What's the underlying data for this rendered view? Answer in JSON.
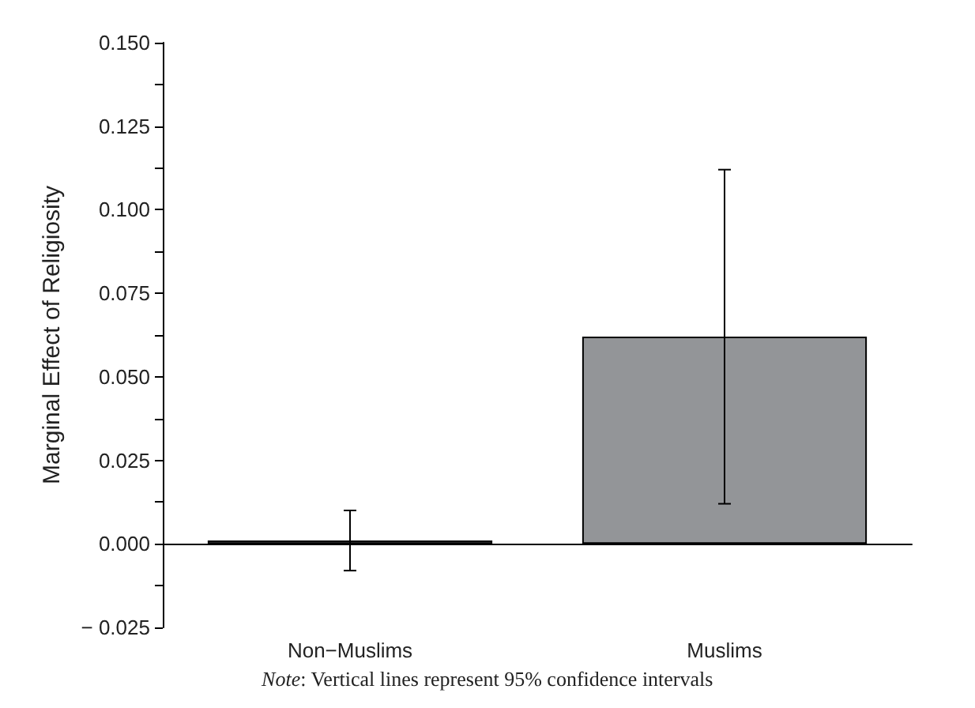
{
  "chart_data": {
    "type": "bar",
    "ylabel": "Marginal Effect of Religiosity",
    "categories": [
      "Non−Muslims",
      "Muslims"
    ],
    "values": [
      0.001,
      0.062
    ],
    "errors": [
      [
        -0.008,
        0.01
      ],
      [
        0.012,
        0.112
      ]
    ],
    "color": "#939598",
    "ylim": [
      -0.025,
      0.15
    ],
    "yticks": [
      {
        "value": -0.025,
        "label": "− 0.025"
      },
      {
        "value": -0.0125,
        "label": null
      },
      {
        "value": 0,
        "label": "0.000"
      },
      {
        "value": 0.0125,
        "label": null
      },
      {
        "value": 0.025,
        "label": "0.025"
      },
      {
        "value": 0.0375,
        "label": null
      },
      {
        "value": 0.05,
        "label": "0.050"
      },
      {
        "value": 0.0625,
        "label": null
      },
      {
        "value": 0.075,
        "label": "0.075"
      },
      {
        "value": 0.0875,
        "label": null
      },
      {
        "value": 0.1,
        "label": "0.100"
      },
      {
        "value": 0.1125,
        "label": null
      },
      {
        "value": 0.125,
        "label": "0.125"
      },
      {
        "value": 0.1375,
        "label": null
      },
      {
        "value": 0.15,
        "label": "0.150"
      }
    ],
    "annotations": [
      "Note: Vertical lines represent 95% confidence intervals"
    ]
  }
}
